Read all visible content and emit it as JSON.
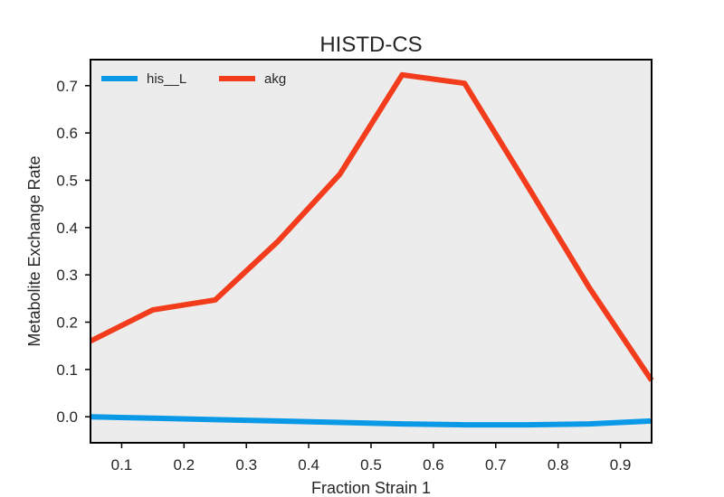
{
  "chart_data": {
    "type": "line",
    "title": "HISTD-CS",
    "xlabel": "Fraction Strain 1",
    "ylabel": "Metabolite Exchange Rate",
    "xlim": [
      0.05,
      0.95
    ],
    "ylim": [
      -0.055,
      0.755
    ],
    "x_ticks": [
      0.1,
      0.2,
      0.3,
      0.4,
      0.5,
      0.6,
      0.7,
      0.8,
      0.9
    ],
    "x_tick_labels": [
      "0.1",
      "0.2",
      "0.3",
      "0.4",
      "0.5",
      "0.6",
      "0.7",
      "0.8",
      "0.9"
    ],
    "y_ticks": [
      0.0,
      0.1,
      0.2,
      0.3,
      0.4,
      0.5,
      0.6,
      0.7
    ],
    "y_tick_labels": [
      "0.0",
      "0.1",
      "0.2",
      "0.3",
      "0.4",
      "0.5",
      "0.6",
      "0.7"
    ],
    "grid": false,
    "legend_position": "top-left",
    "background": "#ececec",
    "x": [
      0.05,
      0.15,
      0.25,
      0.35,
      0.45,
      0.55,
      0.65,
      0.75,
      0.85,
      0.95
    ],
    "series": [
      {
        "name": "his__L",
        "color": "#0a99e6",
        "values": [
          0.0,
          -0.003,
          -0.006,
          -0.009,
          -0.012,
          -0.015,
          -0.017,
          -0.017,
          -0.015,
          -0.009
        ]
      },
      {
        "name": "akg",
        "color": "#f23c1c",
        "values": [
          0.16,
          0.226,
          0.247,
          0.37,
          0.513,
          0.723,
          0.705,
          0.49,
          0.273,
          0.077
        ]
      }
    ]
  }
}
